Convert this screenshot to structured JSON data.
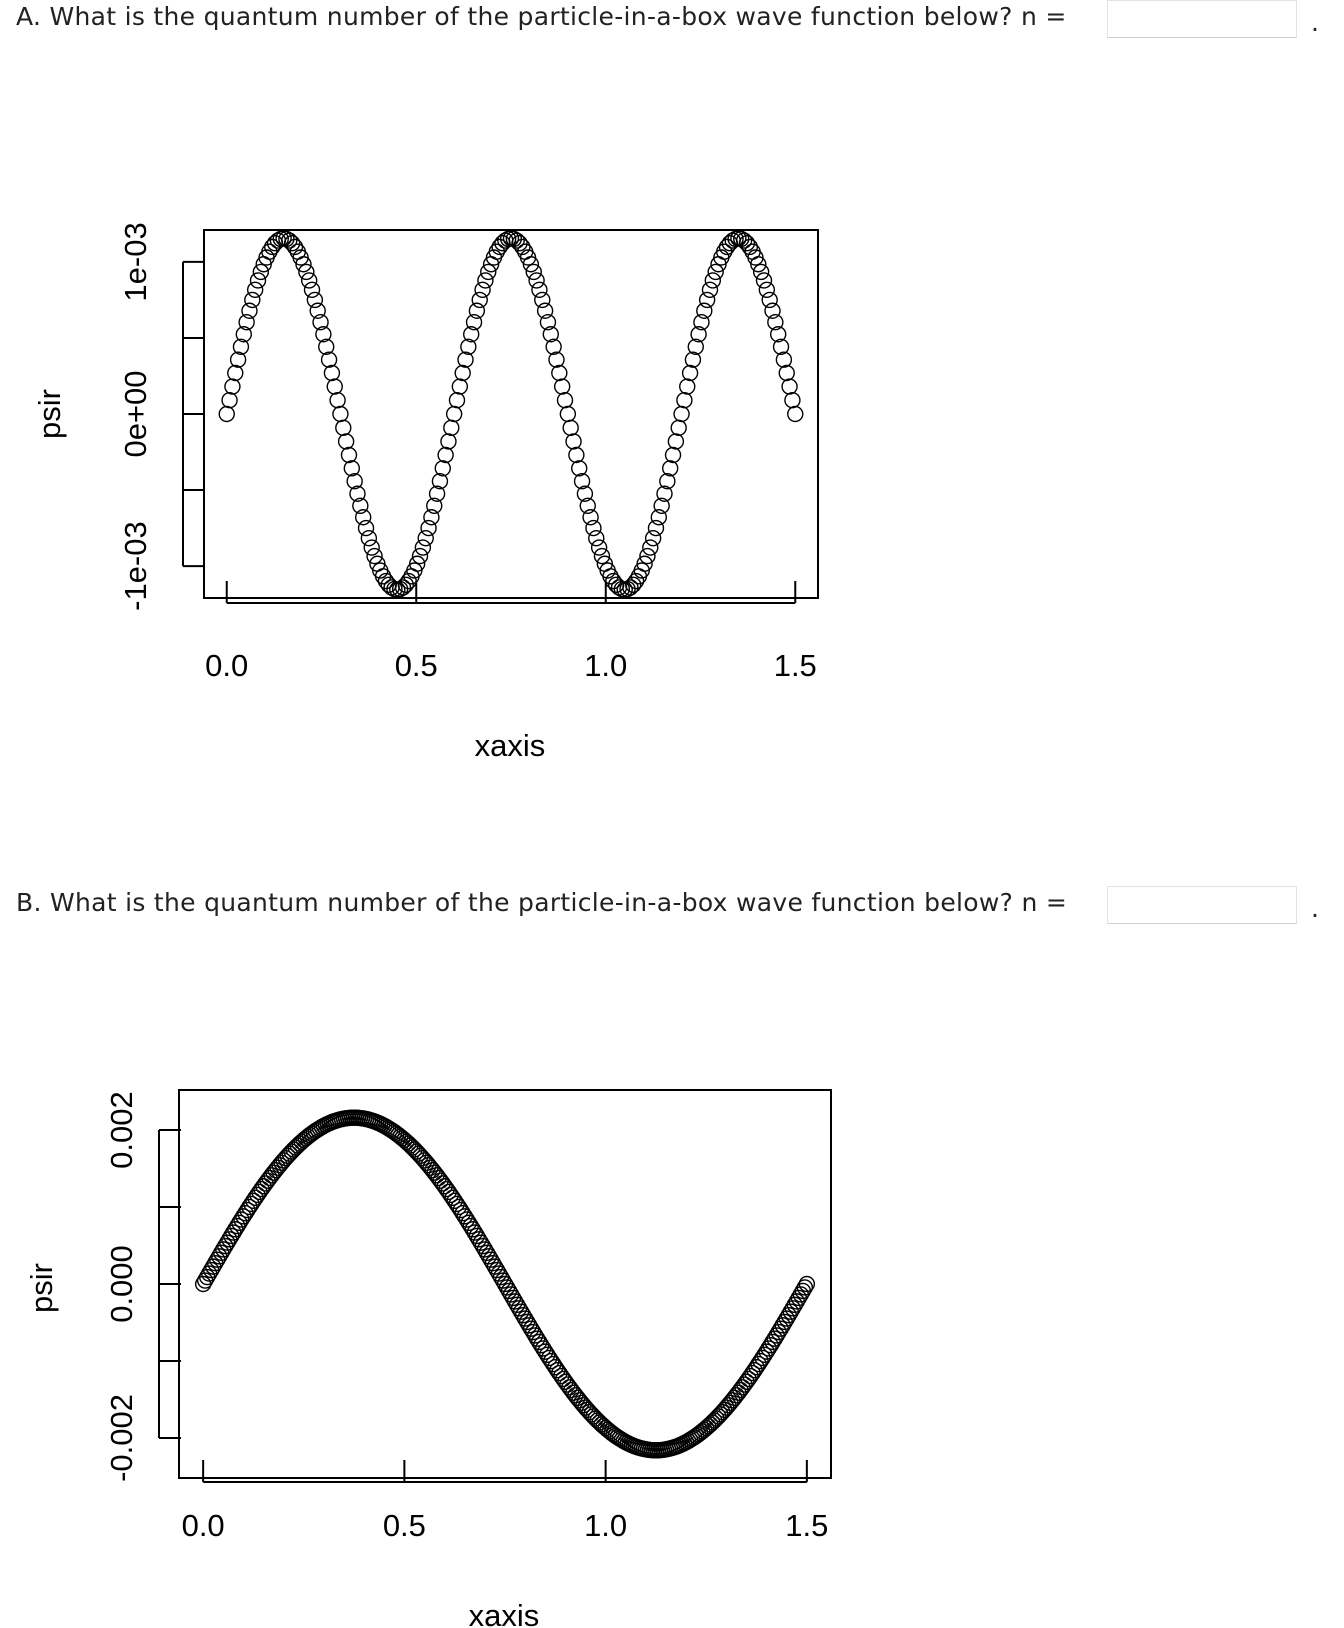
{
  "questions": [
    {
      "id": "A",
      "prompt": "A. What is the quantum number of the particle-in-a-box wave function below? n =",
      "answer_value": "",
      "answer_placeholder": "",
      "suffix": "."
    },
    {
      "id": "B",
      "prompt": "B. What is the quantum number of the particle-in-a-box wave function below? n =",
      "answer_value": "",
      "answer_placeholder": "",
      "suffix": "."
    }
  ],
  "chart_data": [
    {
      "type": "scatter",
      "marker": "open-circle",
      "function": "psi(x) = sqrt(2/L) * sin(n*pi*x/L)",
      "L": 1.5,
      "n": 5,
      "amplitude": 0.001155,
      "points": 201,
      "xlim": [
        -0.06,
        1.56
      ],
      "ylim": [
        -0.00121,
        0.00121
      ],
      "xticks": [
        "0.0",
        "0.5",
        "1.0",
        "1.5"
      ],
      "xtick_values": [
        0,
        0.5,
        1.0,
        1.5
      ],
      "yticks": [
        "-1e-03",
        "0e+00",
        "1e-03"
      ],
      "ytick_values": [
        -0.001,
        0,
        0.001
      ],
      "yminor_values": [
        -0.0005,
        0.0005
      ],
      "xlabel": "xaxis",
      "ylabel": "psir",
      "grid": false,
      "legend": "none"
    },
    {
      "type": "scatter",
      "marker": "open-circle",
      "function": "psi(x) = sqrt(2/L) * sin(n*pi*x/L)",
      "L": 1.5,
      "n": 2,
      "amplitude": 0.00216,
      "points": 301,
      "xlim": [
        -0.06,
        1.56
      ],
      "ylim": [
        -0.00252,
        0.00252
      ],
      "xticks": [
        "0.0",
        "0.5",
        "1.0",
        "1.5"
      ],
      "xtick_values": [
        0,
        0.5,
        1.0,
        1.5
      ],
      "yticks": [
        "-0.002",
        "0.000",
        "0.002"
      ],
      "ytick_values": [
        -0.002,
        0,
        0.002
      ],
      "yminor_values": [
        -0.001,
        0.001
      ],
      "xlabel": "xaxis",
      "ylabel": "psir",
      "grid": false,
      "legend": "none"
    }
  ]
}
